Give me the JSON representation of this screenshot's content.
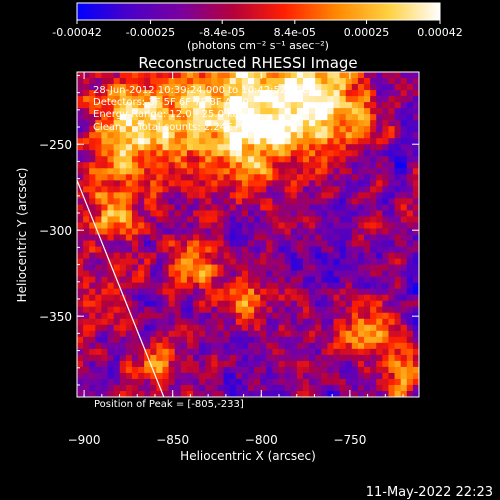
{
  "colorbar": {
    "ticks": [
      -0.00042,
      -0.00025,
      -8.4e-05,
      8.4e-05,
      0.00025,
      0.00042
    ],
    "tick_labels": [
      "-0.00042",
      "-0.00025",
      "-8.4e-05",
      "8.4e-05",
      "0.00025",
      "0.00042"
    ],
    "unit_label": "(photons cm⁻² s⁻¹ asec⁻²)",
    "range": [
      -0.00042,
      0.00042
    ],
    "colormap": [
      "#0000ff",
      "#4b00c8",
      "#7a00a0",
      "#b4003c",
      "#ff2000",
      "#ff8800",
      "#ffd040",
      "#ffffff"
    ]
  },
  "chart_data": {
    "type": "heatmap",
    "title": "Reconstructed RHESSI Image",
    "xlabel": "Heliocentric X (arcsec)",
    "ylabel": "Heliocentric Y (arcsec)",
    "xlim": [
      -904,
      -711
    ],
    "ylim": [
      -397,
      -208
    ],
    "x_ticks": [
      -900,
      -850,
      -800,
      -750
    ],
    "y_ticks": [
      -250,
      -300,
      -350
    ],
    "x_tick_labels": [
      "−900",
      "−850",
      "−800",
      "−750"
    ],
    "y_tick_labels": [
      "−250",
      "−300",
      "−350"
    ],
    "info_lines": [
      "28-Jun-2012 10:39:24.000 to 10:42:52.000",
      "Detectors: 3F 5F 6F 7F 8F  Att 0",
      "Energy Range: 12.0 - 25.0 keV",
      "Clean     Total counts: 2.24E+03"
    ],
    "limb_line": [
      [
        -904,
        -271
      ],
      [
        -855,
        -397
      ]
    ],
    "peak_label": "Position of Peak = [-805,-233]",
    "peak": [
      -805,
      -233
    ]
  },
  "footer": {
    "timestamp": "11-May-2022 22:23"
  }
}
